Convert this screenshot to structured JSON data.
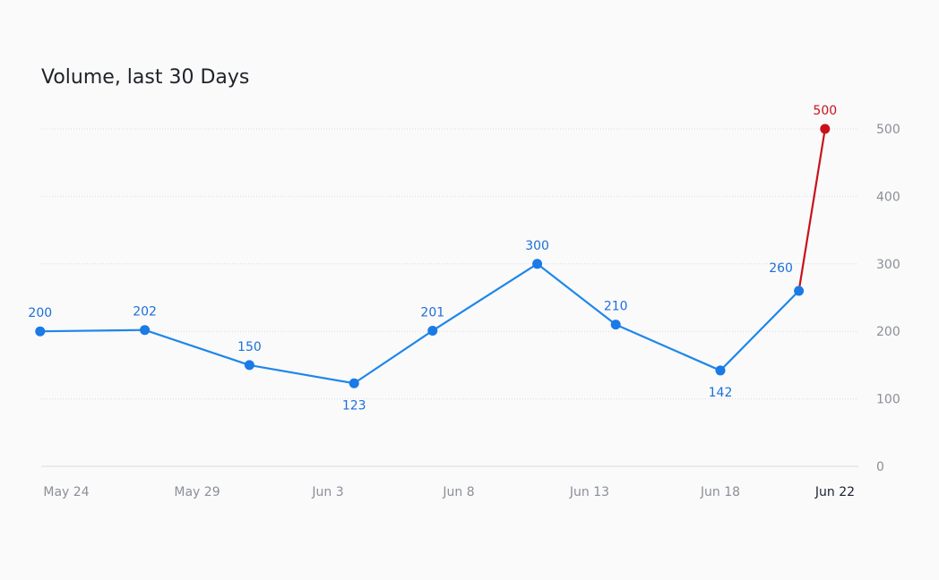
{
  "chart_data": {
    "type": "line",
    "title": "Volume, last 30 Days",
    "y_ticks": [
      0,
      100,
      200,
      300,
      400,
      500
    ],
    "ylim": [
      0,
      500
    ],
    "x_ticks": [
      "May 24",
      "May 29",
      "Jun 3",
      "Jun 8",
      "Jun 13",
      "Jun 18",
      "Jun 22"
    ],
    "active_x_tick": "Jun 22",
    "grid": true,
    "points": [
      {
        "date": "May 23",
        "value": 200
      },
      {
        "date": "May 27",
        "value": 202
      },
      {
        "date": "May 31",
        "value": 150
      },
      {
        "date": "Jun 4",
        "value": 123
      },
      {
        "date": "Jun 7",
        "value": 201
      },
      {
        "date": "Jun 11",
        "value": 300
      },
      {
        "date": "Jun 14",
        "value": 210
      },
      {
        "date": "Jun 18",
        "value": 142
      },
      {
        "date": "Jun 21",
        "value": 260
      },
      {
        "date": "Jun 22",
        "value": 500,
        "highlight": true
      }
    ],
    "line_color": "#1f87e8",
    "highlight_color": "#c8121b",
    "label_color": "#1d6fd8"
  }
}
